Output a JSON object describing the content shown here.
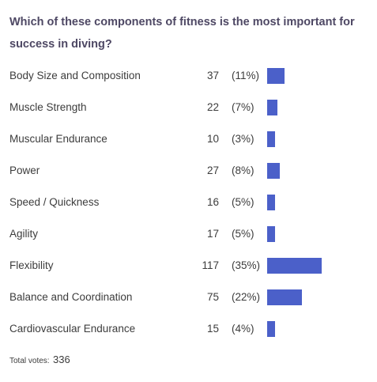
{
  "poll": {
    "question": "Which of these components of fitness is the most important for success in diving?",
    "total_label": "Total votes:",
    "total_value": "336"
  },
  "colors": {
    "bar": "#4b60c9",
    "question": "#4e4864",
    "text": "#3c3c3c"
  },
  "chart_data": {
    "type": "bar",
    "orientation": "horizontal",
    "title": "Which of these components of fitness is the most important for success in diving?",
    "categories": [
      "Body Size and Composition",
      "Muscle Strength",
      "Muscular Endurance",
      "Power",
      "Speed / Quickness",
      "Agility",
      "Flexibility",
      "Balance and Coordination",
      "Cardiovascular Endurance"
    ],
    "values": [
      37,
      22,
      10,
      27,
      16,
      17,
      117,
      75,
      15
    ],
    "percent_labels": [
      "(11%)",
      "(7%)",
      "(3%)",
      "(8%)",
      "(5%)",
      "(5%)",
      "(35%)",
      "(22%)",
      "(4%)"
    ],
    "total": 336
  }
}
